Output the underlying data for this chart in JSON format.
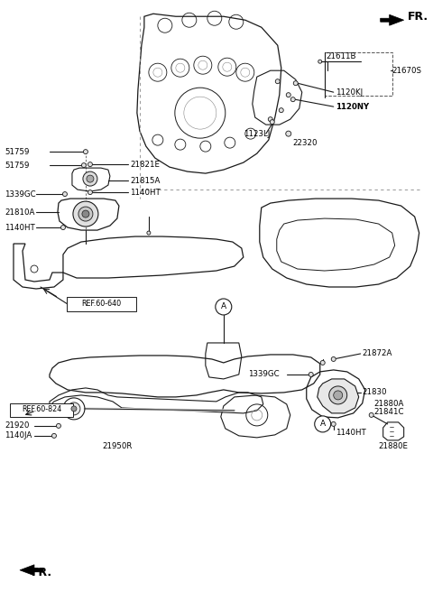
{
  "bg_color": "#ffffff",
  "line_color": "#1a1a1a",
  "text_color": "#000000",
  "labels": {
    "FR_top": "FR.",
    "21611B": "21611B",
    "21670S": "21670S",
    "1120KJ": "1120KJ",
    "1120NY": "1120NY",
    "1123LJ": "1123LJ",
    "22320": "22320",
    "51759_1": "51759",
    "51759_2": "51759",
    "21821E": "21821E",
    "21815A": "21815A",
    "1339GC_top": "1339GC",
    "1140HT_top": "1140HT",
    "21810A": "21810A",
    "1140HT_top2": "1140HT",
    "REF60640": "REF.60-640",
    "21872A": "21872A",
    "1339GC_bot": "1339GC",
    "21830": "21830",
    "21880A": "21880A",
    "21841C": "21841C",
    "1140HT_bot": "1140HT",
    "21880E": "21880E",
    "REF60824": "REF.60-824",
    "21920": "21920",
    "1140JA": "1140JA",
    "21950R": "21950R",
    "FR_bot": "FR.",
    "A_upper": "A",
    "A_lower": "A"
  }
}
